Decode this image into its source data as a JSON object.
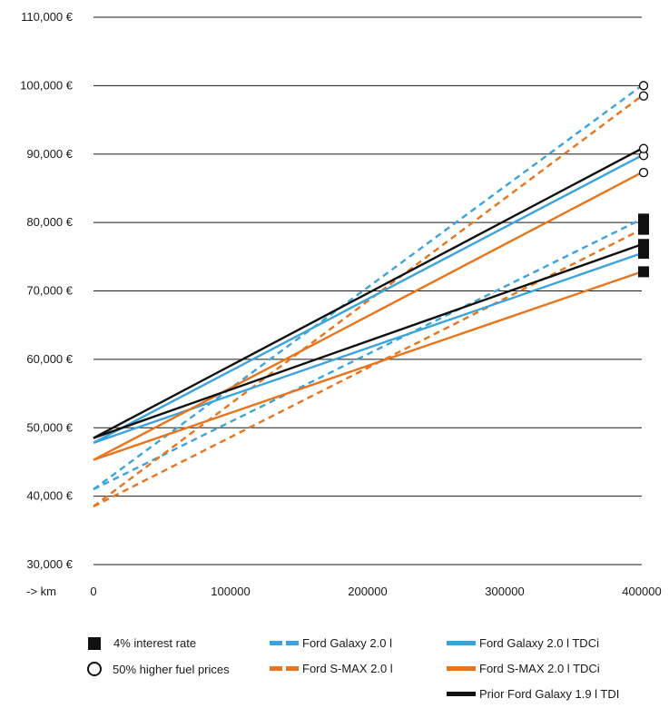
{
  "chart_data": {
    "type": "line",
    "x": [
      0,
      400000
    ],
    "x_tick_labels": [
      "0",
      "100000",
      "200000",
      "300000",
      "400000"
    ],
    "x_unit_label": "-> km",
    "y_tick_labels": [
      "30,000 €",
      "40,000 €",
      "50,000 €",
      "60,000 €",
      "70,000 €",
      "80,000 €",
      "90,000 €",
      "100,000 €",
      "110,000 €"
    ],
    "xlim": [
      0,
      400000
    ],
    "ylim": [
      30000,
      110000
    ],
    "grid": true,
    "series": [
      {
        "name": "Ford Galaxy 2.0 l",
        "style": "dashed",
        "color": "#3ba4dc",
        "values": [
          41000,
          100000
        ],
        "marker_end": "circle"
      },
      {
        "name": "Ford Galaxy 2.0 l",
        "style": "dashed",
        "color": "#3ba4dc",
        "values": [
          41000,
          80500
        ],
        "marker_end": "square"
      },
      {
        "name": "Ford S-MAX 2.0 l",
        "style": "dashed",
        "color": "#e8741c",
        "values": [
          38500,
          98500
        ],
        "marker_end": "circle"
      },
      {
        "name": "Ford S-MAX 2.0 l",
        "style": "dashed",
        "color": "#e8741c",
        "values": [
          38500,
          79000
        ],
        "marker_end": "square"
      },
      {
        "name": "Ford Galaxy 2.0 l TDCi",
        "style": "solid",
        "color": "#3ba4dc",
        "values": [
          47800,
          89800
        ],
        "marker_end": "circle"
      },
      {
        "name": "Ford Galaxy 2.0 l TDCi",
        "style": "solid",
        "color": "#3ba4dc",
        "values": [
          47800,
          75500
        ],
        "marker_end": "square"
      },
      {
        "name": "Ford S-MAX 2.0 l TDCi",
        "style": "solid",
        "color": "#e8741c",
        "values": [
          45300,
          87300
        ],
        "marker_end": "circle"
      },
      {
        "name": "Ford S-MAX 2.0 l TDCi",
        "style": "solid",
        "color": "#e8741c",
        "values": [
          45300,
          72800
        ],
        "marker_end": "square"
      },
      {
        "name": "Prior Ford Galaxy 1.9 l TDI",
        "style": "solid",
        "color": "#111111",
        "values": [
          48500,
          90800
        ],
        "marker_end": "circle"
      },
      {
        "name": "Prior Ford Galaxy 1.9 l TDI",
        "style": "solid",
        "color": "#111111",
        "values": [
          48500,
          76800
        ],
        "marker_end": "square"
      }
    ],
    "legend_placement": "bottom",
    "legend": {
      "square_label": "4% interest rate",
      "circle_label": "50% higher fuel prices",
      "galaxy_petrol": "Ford Galaxy 2.0 l",
      "smax_petrol": "Ford S-MAX 2.0 l",
      "galaxy_diesel": "Ford Galaxy 2.0 l TDCi",
      "smax_diesel": "Ford S-MAX 2.0 l TDCi",
      "prior_galaxy": "Prior Ford Galaxy 1.9 l TDI"
    },
    "colors": {
      "blue": "#3ba4dc",
      "orange": "#e8741c",
      "black": "#111111",
      "grid": "#1a1a1a"
    }
  }
}
